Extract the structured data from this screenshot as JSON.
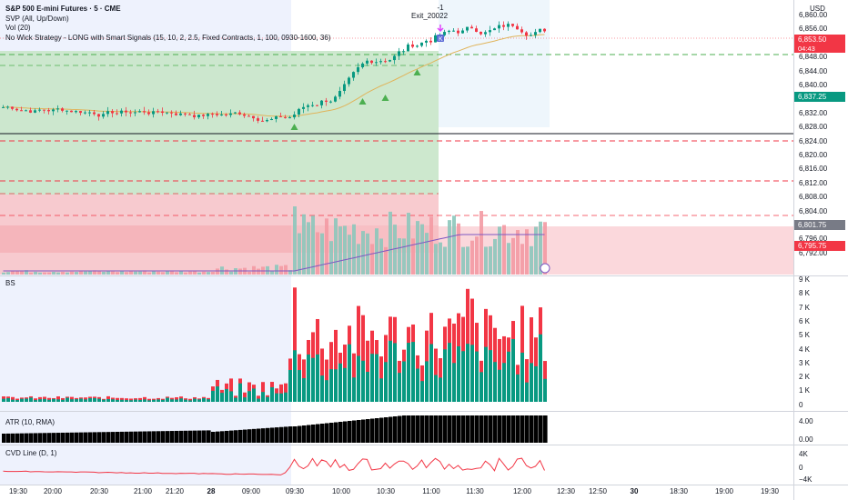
{
  "header": {
    "symbol_line": "S&P 500 E-mini Futures · 5 · CME",
    "indicators": [
      "SVP (All, Up/Down)",
      "Vol (20)",
      "No Wick Strategy - LONG with Smart Signals (15, 10, 2, 2.5, Fixed Contracts, 1, 100, 0930-1600, 36)"
    ],
    "currency": "USD"
  },
  "trade_label": {
    "qty": "-1",
    "name": "Exit_20022"
  },
  "price_axis": {
    "ticks": [
      "6,860.00",
      "6,856.00",
      "6,852.00",
      "6,848.00",
      "6,844.00",
      "6,840.00",
      "6,836.00",
      "6,832.00",
      "6,828.00",
      "6,824.00",
      "6,820.00",
      "6,816.00",
      "6,812.00",
      "6,808.00",
      "6,804.00",
      "6,800.00",
      "6,796.00",
      "6,792.00"
    ],
    "tags": [
      {
        "value": "6,853.50",
        "sub": "04:43",
        "color": "#f23645"
      },
      {
        "value": "6,837.25",
        "color": "#089981"
      },
      {
        "value": "6,801.75",
        "color": "#787b86"
      },
      {
        "value": "6,795.75",
        "color": "#f23645"
      }
    ]
  },
  "bs_panel": {
    "label": "BS",
    "ticks": [
      "9 K",
      "8 K",
      "7 K",
      "6 K",
      "5 K",
      "4 K",
      "3 K",
      "2 K",
      "1 K",
      "0"
    ]
  },
  "atr_panel": {
    "label": "ATR (10, RMA)",
    "ticks": [
      "4.00",
      "0.00"
    ]
  },
  "cvd_panel": {
    "label": "CVD Line (D, 1)",
    "ticks": [
      "4K",
      "0",
      "−4K"
    ]
  },
  "time_axis": [
    {
      "label": "19:30",
      "bold": false
    },
    {
      "label": "20:00",
      "bold": false
    },
    {
      "label": "20:30",
      "bold": false
    },
    {
      "label": "21:00",
      "bold": false
    },
    {
      "label": "21:20",
      "bold": false
    },
    {
      "label": "28",
      "bold": true
    },
    {
      "label": "09:00",
      "bold": false
    },
    {
      "label": "09:30",
      "bold": false
    },
    {
      "label": "10:00",
      "bold": false
    },
    {
      "label": "10:30",
      "bold": false
    },
    {
      "label": "11:00",
      "bold": false
    },
    {
      "label": "11:30",
      "bold": false
    },
    {
      "label": "12:00",
      "bold": false
    },
    {
      "label": "12:30",
      "bold": false
    },
    {
      "label": "12:50",
      "bold": false
    },
    {
      "label": "30",
      "bold": true
    },
    {
      "label": "18:30",
      "bold": false
    },
    {
      "label": "19:00",
      "bold": false
    },
    {
      "label": "19:30",
      "bold": false
    }
  ],
  "colors": {
    "up": "#089981",
    "down": "#f23645",
    "ema": "#e0b45b",
    "vwap": "#7e57c2",
    "signal": "#4caf50",
    "session_bg": "#eef2fd"
  }
}
